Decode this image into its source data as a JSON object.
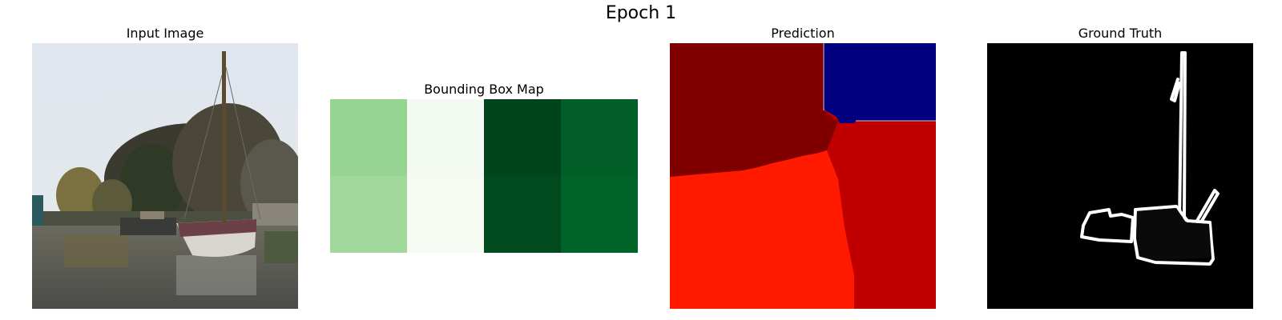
{
  "figure": {
    "title": "Epoch 1"
  },
  "panels": {
    "input": {
      "title": "Input Image"
    },
    "bbox": {
      "title": "Bounding Box Map"
    },
    "prediction": {
      "title": "Prediction"
    },
    "ground_truth": {
      "title": "Ground Truth"
    }
  },
  "bbox_map": {
    "cells": [
      [
        "#94d390",
        "#f3faf1",
        "#00441b",
        "#005e26"
      ],
      [
        "#a0d89b",
        "#f5fbf3",
        "#004a1e",
        "#006428"
      ]
    ]
  },
  "colors": {
    "prediction_dark_red": "#800000",
    "prediction_navy": "#000080",
    "prediction_red": "#c00000",
    "prediction_bright_red": "#ff1a00",
    "ground_truth_bg": "#000000",
    "ground_truth_outline": "#ffffff"
  }
}
